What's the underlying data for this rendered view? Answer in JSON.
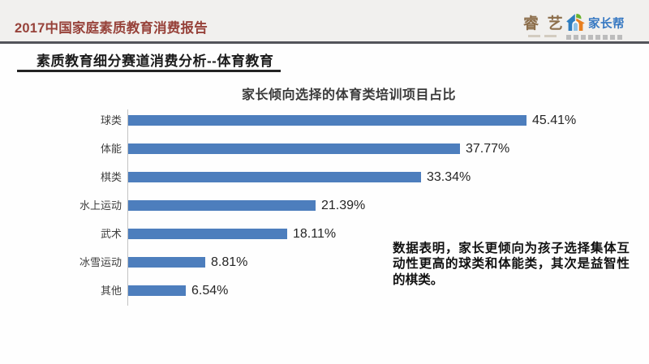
{
  "header": {
    "title": "2017中国家庭素质教育消费报告",
    "logos": {
      "ruiyi": {
        "name": "睿艺",
        "text": "睿 艺"
      },
      "jiazhangbang": {
        "name": "家长帮",
        "text": "家长帮"
      }
    },
    "colors": {
      "title": "#97423a",
      "band": "#f1f0ee",
      "divider": "#53545a"
    }
  },
  "section": {
    "title": "素质教育细分赛道消费分析--体育教育"
  },
  "chart_data": {
    "type": "bar",
    "orientation": "horizontal",
    "title": "家长倾向选择的体育类培训项目占比",
    "categories": [
      "球类",
      "体能",
      "棋类",
      "水上运动",
      "武术",
      "冰雪运动",
      "其他"
    ],
    "values": [
      45.41,
      37.77,
      33.34,
      21.39,
      18.11,
      8.81,
      6.54
    ],
    "value_labels": [
      "45.41%",
      "37.77%",
      "33.34%",
      "21.39%",
      "18.11%",
      "8.81%",
      "6.54%"
    ],
    "xlabel": "",
    "ylabel": "",
    "xlim": [
      0,
      50
    ],
    "grid": false,
    "legend": false,
    "bar_color": "#4d7ebd"
  },
  "annotation": {
    "text": "数据表明，家长更倾向为孩子选择集体互动性更高的球类和体能类，其次是益智性的棋类。"
  }
}
